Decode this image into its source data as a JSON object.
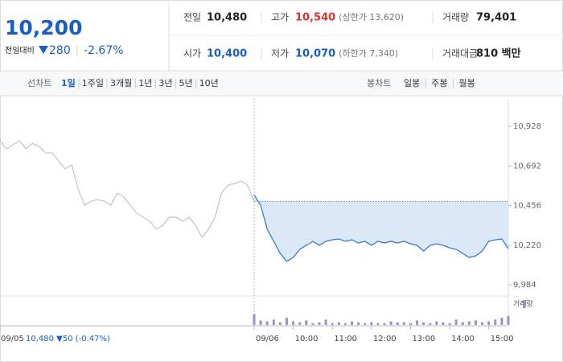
{
  "header": {
    "price": "10,200",
    "change_label": "전일대비",
    "change": "280",
    "change_pct": "-2.67%",
    "stats": [
      [
        {
          "label": "전일",
          "value": "10,480",
          "color": "#222"
        },
        {
          "label": "고가",
          "value": "10,540",
          "color": "#e0312c",
          "note": "(상한가 13,620)"
        },
        {
          "label": "거래량",
          "value": "79,401",
          "color": "#222"
        }
      ],
      [
        {
          "label": "시가",
          "value": "10,400",
          "color": "#1a5dc8"
        },
        {
          "label": "저가",
          "value": "10,070",
          "color": "#1a5dc8",
          "note": "(하한가 7,340)"
        },
        {
          "label": "거래대금",
          "value": "810 백만",
          "color": "#222"
        }
      ]
    ]
  },
  "tabs": {
    "line_label": "선차트",
    "line_items": [
      "1일",
      "1주일",
      "3개월",
      "1년",
      "3년",
      "5년",
      "10년"
    ],
    "active_index": 0,
    "candle_label": "봉차트",
    "candle_items": [
      "일봉",
      "주봉",
      "월봉"
    ]
  },
  "chart_data": {
    "type": "line",
    "reference": 10480,
    "annotation": "10,480 ▼50 (-0.47%)",
    "xlim": [
      0,
      780
    ],
    "ylim": [
      9917,
      11096
    ],
    "xticks": [
      {
        "value": 0,
        "label": "09/05"
      },
      {
        "value": 390,
        "label": "09/06"
      },
      {
        "value": 450,
        "label": "10:00"
      },
      {
        "value": 510,
        "label": "11:00"
      },
      {
        "value": 570,
        "label": "12:00"
      },
      {
        "value": 630,
        "label": "13:00"
      },
      {
        "value": 690,
        "label": "14:00"
      },
      {
        "value": 750,
        "label": "15:00"
      }
    ],
    "yticks": [
      {
        "value": 9984,
        "label": "9,984"
      },
      {
        "value": 10220,
        "label": "10,220"
      },
      {
        "value": 10456,
        "label": "10,456"
      },
      {
        "value": 10692,
        "label": "10,692"
      },
      {
        "value": 10928,
        "label": "10,928"
      }
    ],
    "series": [
      {
        "color": "#c8c8c8",
        "x": [
          0,
          10,
          20,
          30,
          40,
          50,
          60,
          70,
          80,
          90,
          100,
          110,
          120,
          130,
          140,
          150,
          160,
          170,
          180,
          190,
          200,
          210,
          220,
          230,
          240,
          250,
          260,
          270,
          280,
          290,
          300,
          310,
          320,
          330,
          340,
          350,
          360,
          370,
          380,
          390
        ],
        "values": [
          10842,
          10794,
          10818,
          10842,
          10794,
          10827,
          10808,
          10770,
          10770,
          10722,
          10674,
          10698,
          10554,
          10458,
          10482,
          10492,
          10482,
          10458,
          10530,
          10506,
          10458,
          10410,
          10387,
          10363,
          10315,
          10339,
          10387,
          10387,
          10363,
          10387,
          10339,
          10267,
          10315,
          10387,
          10530,
          10578,
          10588,
          10602,
          10578,
          10480
        ]
      },
      {
        "color": "#3a7bd5",
        "fill": "#dbe8f8",
        "x": [
          390,
          400,
          410,
          420,
          430,
          440,
          450,
          460,
          470,
          480,
          490,
          500,
          510,
          520,
          530,
          540,
          550,
          560,
          570,
          580,
          590,
          600,
          610,
          620,
          630,
          640,
          650,
          660,
          670,
          680,
          690,
          700,
          710,
          720,
          730,
          740,
          750,
          760,
          770,
          780
        ],
        "values": [
          10520,
          10458,
          10315,
          10243,
          10171,
          10123,
          10147,
          10195,
          10219,
          10243,
          10219,
          10243,
          10252,
          10257,
          10243,
          10252,
          10233,
          10243,
          10219,
          10243,
          10233,
          10243,
          10233,
          10243,
          10228,
          10219,
          10185,
          10219,
          10228,
          10219,
          10204,
          10195,
          10171,
          10147,
          10156,
          10185,
          10243,
          10252,
          10257,
          10200
        ]
      }
    ],
    "volume": {
      "name": "거래량",
      "color": "#9b8fd0",
      "vlim": [
        0,
        30
      ],
      "values": [
        12,
        5,
        4,
        6,
        3,
        8,
        4,
        3,
        5,
        2,
        3,
        6,
        2,
        3,
        2,
        4,
        3,
        2,
        3,
        2,
        2,
        4,
        3,
        3,
        2,
        5,
        3,
        2,
        4,
        3,
        2,
        6,
        3,
        4,
        5,
        3,
        4,
        6,
        8,
        10
      ]
    }
  }
}
